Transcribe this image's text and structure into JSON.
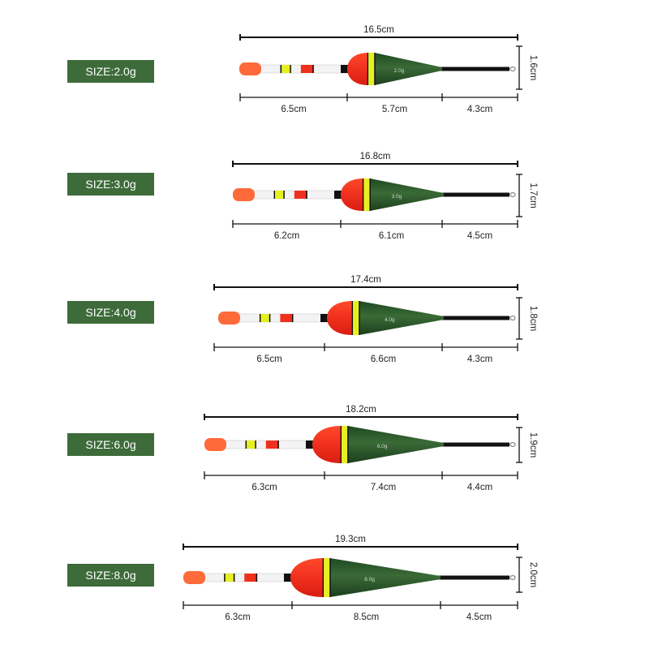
{
  "colors": {
    "label_bg": "#3d6b3a",
    "body_green": "#2e5a2c",
    "body_red": "#f0301e",
    "band_yellow": "#e6f020",
    "tip_orange": "#ff6a3a"
  },
  "floats": [
    {
      "size_label": "SIZE:2.0g",
      "body_mark": "2.0g",
      "total": "16.5cm",
      "height": "1.6cm",
      "segments": [
        "6.5cm",
        "5.7cm",
        "4.3cm"
      ]
    },
    {
      "size_label": "SIZE:3.0g",
      "body_mark": "3.0g",
      "total": "16.8cm",
      "height": "1.7cm",
      "segments": [
        "6.2cm",
        "6.1cm",
        "4.5cm"
      ]
    },
    {
      "size_label": "SIZE:4.0g",
      "body_mark": "4.0g",
      "total": "17.4cm",
      "height": "1.8cm",
      "segments": [
        "6.5cm",
        "6.6cm",
        "4.3cm"
      ]
    },
    {
      "size_label": "SIZE:6.0g",
      "body_mark": "6.0g",
      "total": "18.2cm",
      "height": "1.9cm",
      "segments": [
        "6.3cm",
        "7.4cm",
        "4.4cm"
      ]
    },
    {
      "size_label": "SIZE:8.0g",
      "body_mark": "8.0g",
      "total": "19.3cm",
      "height": "2.0cm",
      "segments": [
        "6.3cm",
        "8.5cm",
        "4.5cm"
      ]
    }
  ]
}
